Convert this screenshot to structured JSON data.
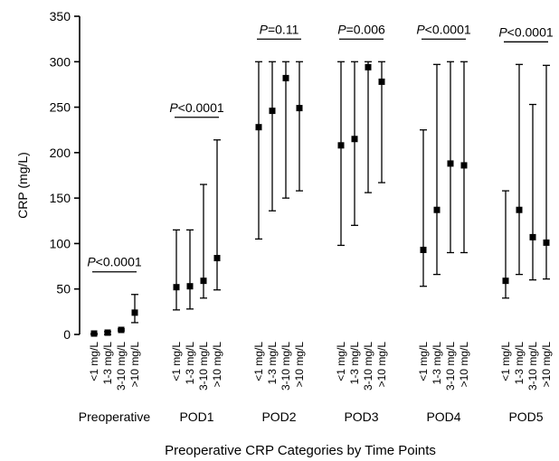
{
  "chart_data": {
    "type": "scatter",
    "title": "",
    "xlabel": "Preoperative CRP Categories by Time Points",
    "ylabel": "CRP (mg/L)",
    "ylim": [
      0,
      350
    ],
    "yticks": [
      "0",
      "50",
      "100",
      "150",
      "200",
      "250",
      "300",
      "350"
    ],
    "grid": false,
    "category_labels": [
      "<1 mg/L",
      "1-3 mg/L",
      "3-10 mg/L",
      ">10 mg/L"
    ],
    "groups": [
      {
        "name": "Preoperative",
        "p_prefix": "P",
        "p_rest": "<0.0001",
        "points": [
          {
            "value": 1,
            "low": 0,
            "high": 1
          },
          {
            "value": 2,
            "low": 0,
            "high": 3
          },
          {
            "value": 5,
            "low": 4,
            "high": 6
          },
          {
            "value": 24,
            "low": 13,
            "high": 44
          }
        ]
      },
      {
        "name": "POD1",
        "p_prefix": "P",
        "p_rest": "<0.0001",
        "points": [
          {
            "value": 52,
            "low": 27,
            "high": 115
          },
          {
            "value": 53,
            "low": 28,
            "high": 115
          },
          {
            "value": 59,
            "low": 40,
            "high": 165
          },
          {
            "value": 84,
            "low": 49,
            "high": 214
          }
        ]
      },
      {
        "name": "POD2",
        "p_prefix": "P",
        "p_rest": "=0.11",
        "points": [
          {
            "value": 228,
            "low": 105,
            "high": 300
          },
          {
            "value": 246,
            "low": 136,
            "high": 300
          },
          {
            "value": 282,
            "low": 150,
            "high": 300
          },
          {
            "value": 249,
            "low": 158,
            "high": 300
          }
        ]
      },
      {
        "name": "POD3",
        "p_prefix": "P",
        "p_rest": "=0.006",
        "points": [
          {
            "value": 208,
            "low": 98,
            "high": 300
          },
          {
            "value": 215,
            "low": 120,
            "high": 300
          },
          {
            "value": 294,
            "low": 156,
            "high": 300
          },
          {
            "value": 278,
            "low": 167,
            "high": 300
          }
        ]
      },
      {
        "name": "POD4",
        "p_prefix": "P",
        "p_rest": "<0.0001",
        "points": [
          {
            "value": 93,
            "low": 53,
            "high": 225
          },
          {
            "value": 137,
            "low": 66,
            "high": 297
          },
          {
            "value": 188,
            "low": 90,
            "high": 300
          },
          {
            "value": 186,
            "low": 90,
            "high": 300
          }
        ]
      },
      {
        "name": "POD5",
        "p_prefix": "P",
        "p_rest": "<0.0001",
        "points": [
          {
            "value": 59,
            "low": 40,
            "high": 158
          },
          {
            "value": 137,
            "low": 66,
            "high": 297
          },
          {
            "value": 107,
            "low": 60,
            "high": 253
          },
          {
            "value": 101,
            "low": 61,
            "high": 296
          }
        ]
      }
    ]
  }
}
